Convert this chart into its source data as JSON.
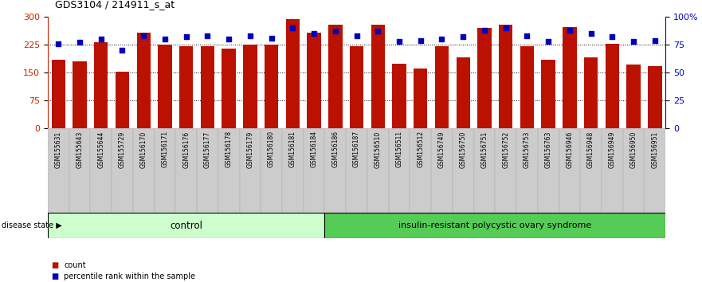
{
  "title": "GDS3104 / 214911_s_at",
  "samples": [
    "GSM155631",
    "GSM155643",
    "GSM155644",
    "GSM155729",
    "GSM156170",
    "GSM156171",
    "GSM156176",
    "GSM156177",
    "GSM156178",
    "GSM156179",
    "GSM156180",
    "GSM156181",
    "GSM156184",
    "GSM156186",
    "GSM156187",
    "GSM156510",
    "GSM156511",
    "GSM156512",
    "GSM156749",
    "GSM156750",
    "GSM156751",
    "GSM156752",
    "GSM156753",
    "GSM156763",
    "GSM156946",
    "GSM156948",
    "GSM156949",
    "GSM156950",
    "GSM156951"
  ],
  "counts": [
    185,
    180,
    232,
    152,
    258,
    226,
    222,
    222,
    215,
    226,
    225,
    295,
    258,
    278,
    222,
    278,
    175,
    162,
    222,
    192,
    270,
    278,
    222,
    185,
    272,
    192,
    228,
    172,
    168
  ],
  "percentiles": [
    76,
    77,
    80,
    70,
    83,
    80,
    82,
    83,
    80,
    83,
    81,
    90,
    85,
    87,
    83,
    87,
    78,
    79,
    80,
    82,
    88,
    90,
    83,
    78,
    88,
    85,
    82,
    78,
    79
  ],
  "control_count": 13,
  "disease_count": 16,
  "bar_color": "#bb1100",
  "dot_color": "#0000bb",
  "left_ylim": [
    0,
    300
  ],
  "right_ylim": [
    0,
    100
  ],
  "left_yticks": [
    0,
    75,
    150,
    225,
    300
  ],
  "right_yticks": [
    0,
    25,
    50,
    75,
    100
  ],
  "right_yticklabels": [
    "0",
    "25",
    "50",
    "75",
    "100%"
  ],
  "control_label": "control",
  "disease_label": "insulin-resistant polycystic ovary syndrome",
  "disease_state_label": "disease state",
  "legend_count": "count",
  "legend_percentile": "percentile rank within the sample",
  "control_color": "#ccffcc",
  "disease_color": "#55cc55",
  "bg_color": "#ffffff",
  "plot_bg": "#ffffff",
  "tick_label_bg": "#cccccc"
}
